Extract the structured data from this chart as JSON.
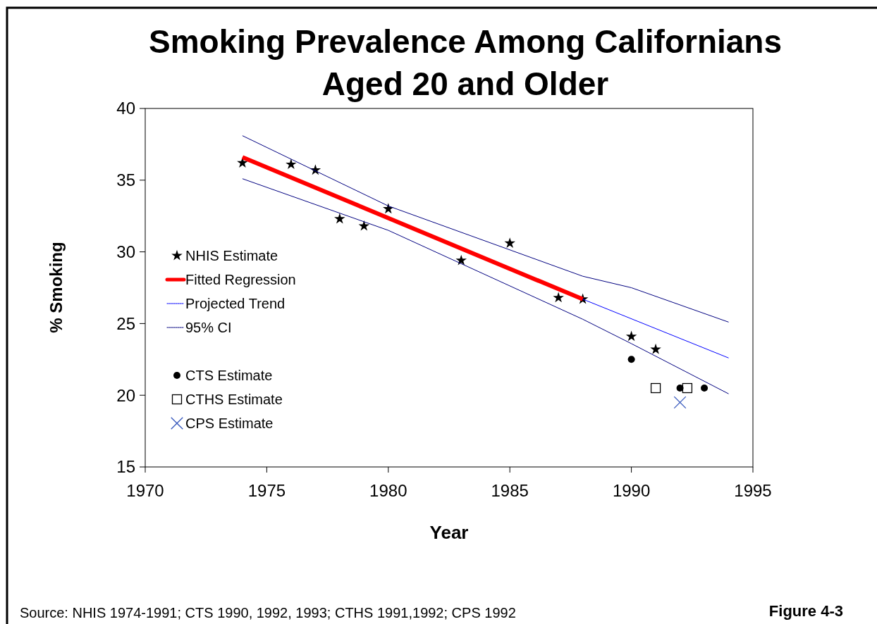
{
  "chart_data": {
    "type": "scatter",
    "title": "Smoking Prevalence Among Californians\nAged 20 and Older",
    "xlabel": "Year",
    "ylabel": "% Smoking",
    "xlim": [
      1970,
      1995
    ],
    "xticks": [
      1970,
      1975,
      1980,
      1985,
      1990,
      1995
    ],
    "ylim": [
      15,
      40
    ],
    "yticks": [
      15,
      20,
      25,
      30,
      35,
      40
    ],
    "grid": false,
    "legend": "left",
    "series": [
      {
        "name": "NHIS Estimate",
        "marker": "star",
        "color": "#000000",
        "x": [
          1974,
          1976,
          1977,
          1978,
          1979,
          1980,
          1983,
          1985,
          1987,
          1988,
          1990,
          1991
        ],
        "values": [
          36.2,
          36.1,
          35.7,
          32.3,
          31.8,
          33.0,
          29.4,
          30.6,
          26.8,
          26.7,
          24.1,
          23.2
        ]
      },
      {
        "name": "Fitted Regression",
        "type": "line",
        "marker": "none",
        "line_style": "solid",
        "color": "#ff0000",
        "x": [
          1974,
          1988
        ],
        "values": [
          36.6,
          26.7
        ]
      },
      {
        "name": "Projected Trend",
        "type": "line",
        "marker": "none",
        "line_style": "solid",
        "color": "#0000ff",
        "x": [
          1988,
          1994
        ],
        "values": [
          26.7,
          22.6
        ]
      },
      {
        "name": "95% CI",
        "type": "line",
        "marker": "none",
        "line_style": "solid",
        "color": "#000080",
        "x": [
          1974,
          1980,
          1988,
          1990,
          1994
        ],
        "values": [
          38.1,
          33.2,
          28.3,
          27.5,
          25.1
        ]
      },
      {
        "type": "line",
        "marker": "none",
        "line_style": "solid",
        "color": "#000080",
        "x": [
          1974,
          1980,
          1988,
          1990,
          1994
        ],
        "values": [
          35.1,
          31.5,
          25.3,
          23.6,
          20.1
        ]
      },
      {
        "name": "CTS Estimate",
        "marker": "circle",
        "color": "#000000",
        "x": [
          1990,
          1992,
          1993
        ],
        "values": [
          22.5,
          20.5,
          20.5
        ]
      },
      {
        "name": "CTHS Estimate",
        "marker": "square",
        "color": "#000000",
        "x": [
          1991,
          1992.3
        ],
        "values": [
          20.5,
          20.5
        ]
      },
      {
        "name": "CPS Estimate",
        "marker": "cross",
        "color": "#3355bb",
        "x": [
          1992
        ],
        "values": [
          19.5
        ]
      }
    ],
    "annotations": [
      "Source: NHIS 1974-1991; CTS 1990, 1992, 1993; CTHS 1991,1992; CPS 1992",
      "Figure 4-3"
    ]
  }
}
